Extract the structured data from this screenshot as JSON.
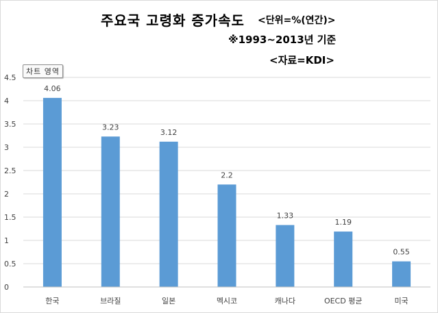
{
  "chart_data": {
    "type": "bar",
    "title": "주요국 고령화 증가속도",
    "notes": [
      "<단위=%(연간)>",
      "※1993~2013년 기준",
      "<자료=KDI>"
    ],
    "categories": [
      "한국",
      "브라질",
      "일본",
      "멕시코",
      "캐나다",
      "OECD 평균",
      "미국"
    ],
    "values": [
      4.06,
      3.23,
      3.12,
      2.2,
      1.33,
      1.19,
      0.55
    ],
    "value_labels": [
      "4.06",
      "3.23",
      "3.12",
      "2.2",
      "1.33",
      "1.19",
      "0.55"
    ],
    "ylim": [
      0,
      4.5
    ],
    "yticks": [
      "0",
      "0.5",
      "1",
      "1.5",
      "2",
      "2.5",
      "3",
      "3.5",
      "4",
      "4.5"
    ],
    "xlabel": "",
    "ylabel": "",
    "grid": true,
    "bar_color": "#5b9bd5",
    "grid_color": "#d9d9d9"
  },
  "ui": {
    "area_tag": "차트 영역"
  }
}
